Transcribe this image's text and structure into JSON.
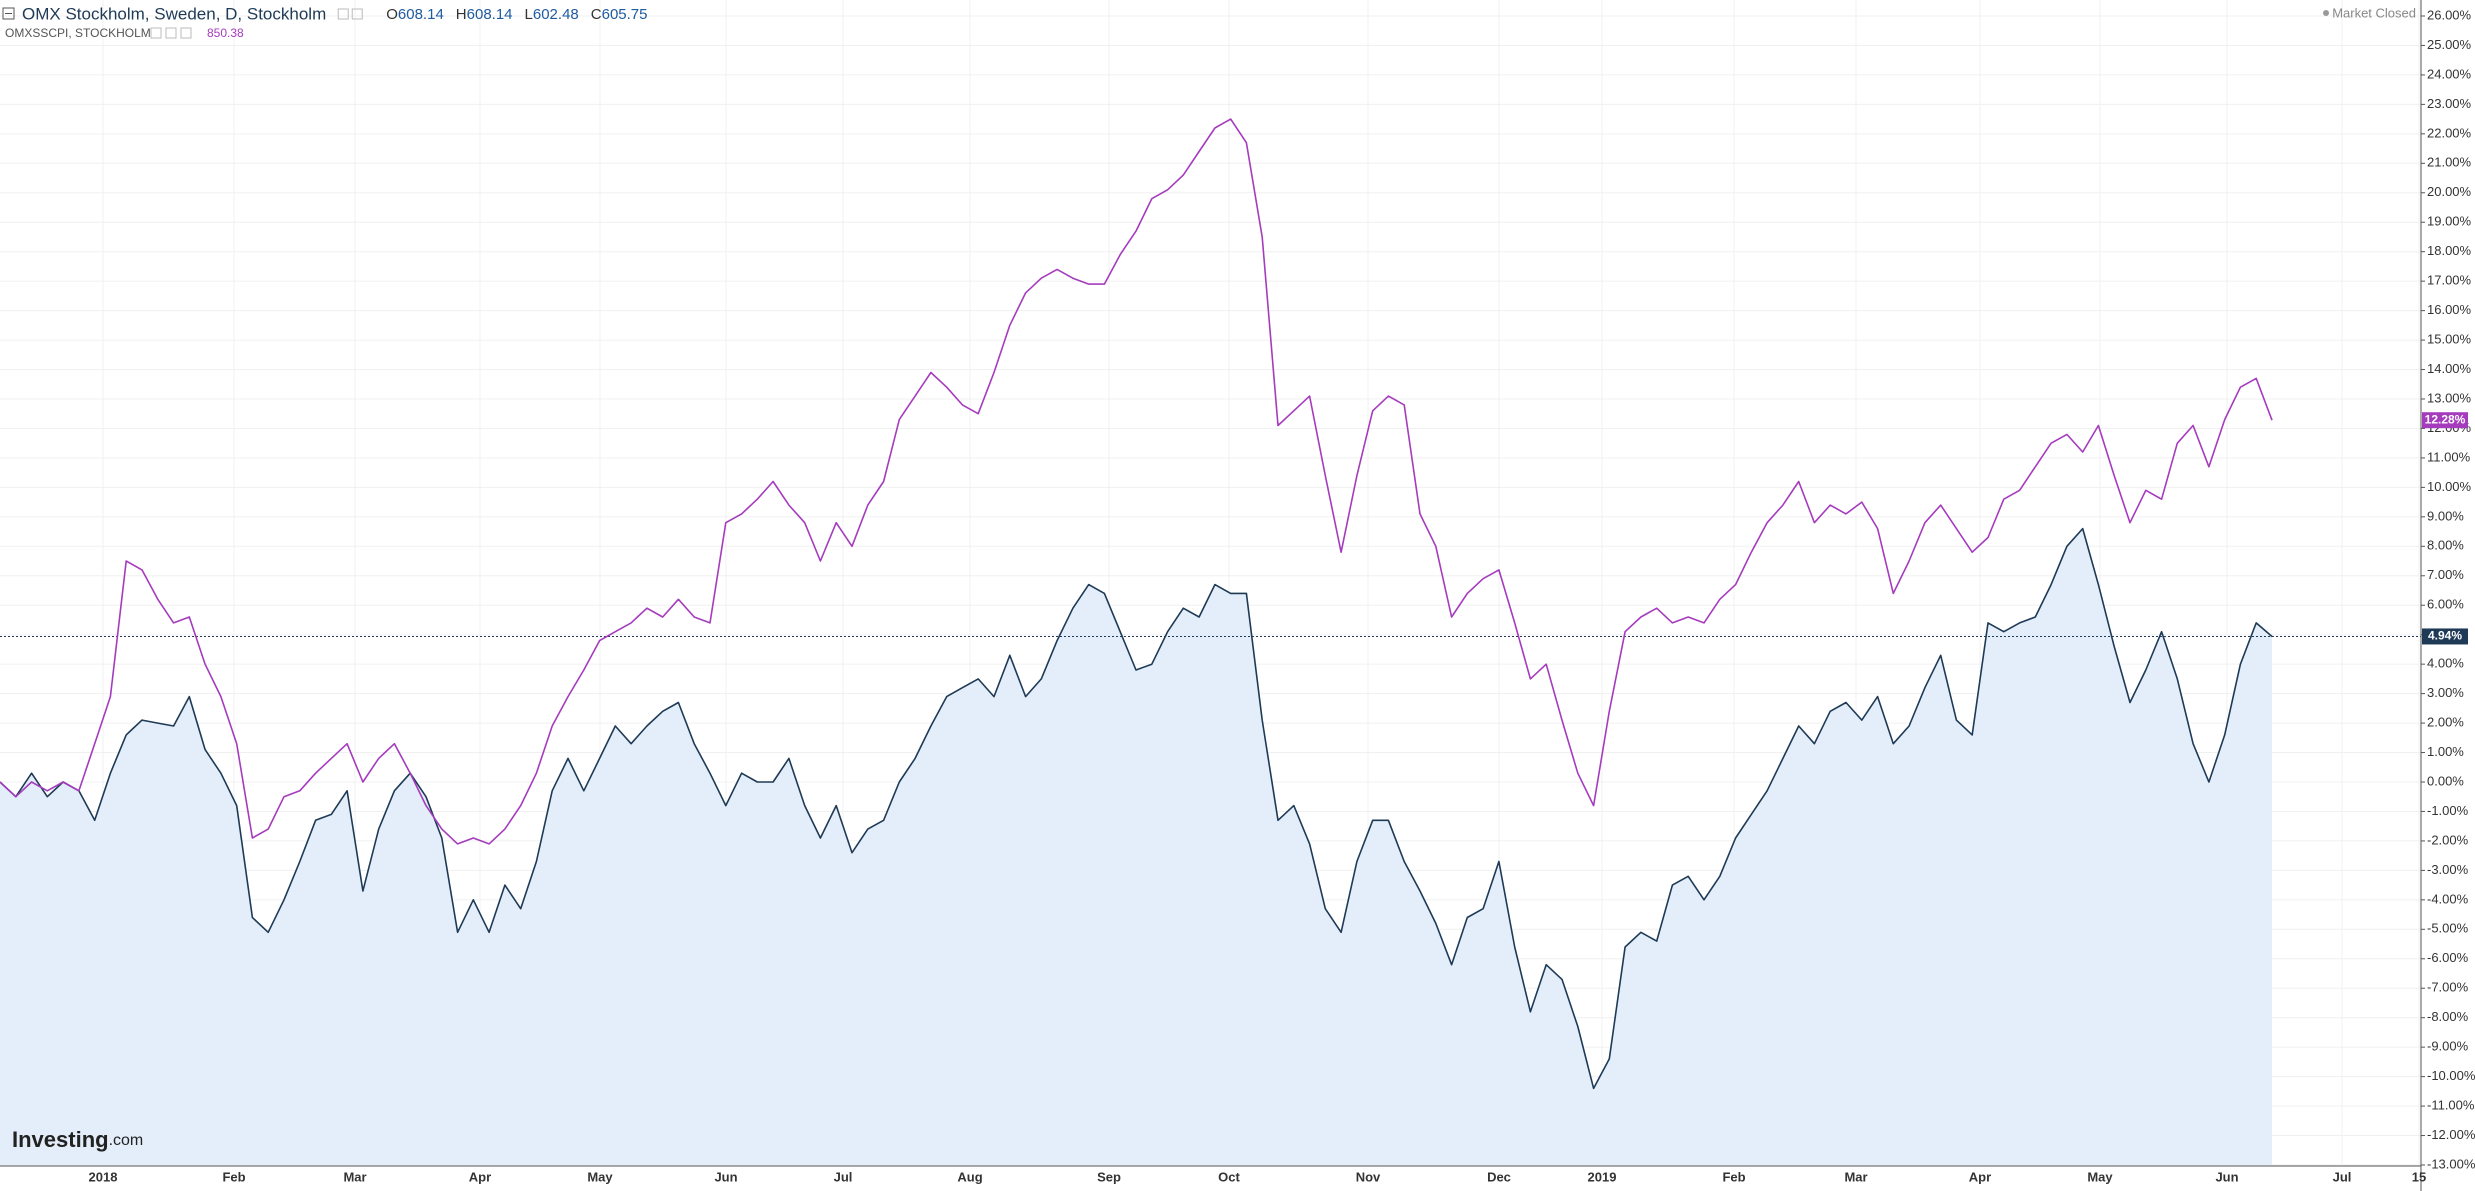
{
  "header": {
    "ohlc": [
      {
        "label": "O",
        "value": "608.14"
      },
      {
        "label": "H",
        "value": "608.14"
      },
      {
        "label": "L",
        "value": "602.48"
      },
      {
        "label": "C",
        "value": "605.75"
      }
    ],
    "compare_value": "850.38",
    "status": "Market Closed",
    "logo": "Investing",
    "logo_suffix": ".com"
  },
  "chart_data": {
    "type": "line",
    "x_labels": [
      "2018",
      "Feb",
      "Mar",
      "Apr",
      "May",
      "Jun",
      "Jul",
      "Aug",
      "Sep",
      "Oct",
      "Nov",
      "Dec",
      "2019",
      "Feb",
      "Mar",
      "Apr",
      "May",
      "Jun",
      "Jul",
      "15"
    ],
    "ylim": [
      -13,
      26
    ],
    "yticks": [
      {
        "value": 26,
        "label": "26.00%"
      },
      {
        "value": 25,
        "label": "25.00%"
      },
      {
        "value": 24,
        "label": "24.00%"
      },
      {
        "value": 23,
        "label": "23.00%"
      },
      {
        "value": 22,
        "label": "22.00%"
      },
      {
        "value": 21,
        "label": "21.00%"
      },
      {
        "value": 20,
        "label": "20.00%"
      },
      {
        "value": 19,
        "label": "19.00%"
      },
      {
        "value": 18,
        "label": "18.00%"
      },
      {
        "value": 17,
        "label": "17.00%"
      },
      {
        "value": 16,
        "label": "16.00%"
      },
      {
        "value": 15,
        "label": "15.00%"
      },
      {
        "value": 14,
        "label": "14.00%"
      },
      {
        "value": 13,
        "label": "13.00%"
      },
      {
        "value": 12,
        "label": "12.00%"
      },
      {
        "value": 11,
        "label": "11.00%"
      },
      {
        "value": 10,
        "label": "10.00%"
      },
      {
        "value": 9,
        "label": "9.00%"
      },
      {
        "value": 8,
        "label": "8.00%"
      },
      {
        "value": 7,
        "label": "7.00%"
      },
      {
        "value": 6,
        "label": "6.00%"
      },
      {
        "value": 5,
        "label": "5.00%"
      },
      {
        "value": 4,
        "label": "4.00%"
      },
      {
        "value": 3,
        "label": "3.00%"
      },
      {
        "value": 2,
        "label": "2.00%"
      },
      {
        "value": 1,
        "label": "1.00%"
      },
      {
        "value": 0,
        "label": "0.00%"
      },
      {
        "value": -1,
        "label": "-1.00%"
      },
      {
        "value": -2,
        "label": "-2.00%"
      },
      {
        "value": -3,
        "label": "-3.00%"
      },
      {
        "value": -4,
        "label": "-4.00%"
      },
      {
        "value": -5,
        "label": "-5.00%"
      },
      {
        "value": -6,
        "label": "-6.00%"
      },
      {
        "value": -7,
        "label": "-7.00%"
      },
      {
        "value": -8,
        "label": "-8.00%"
      },
      {
        "value": -9,
        "label": "-9.00%"
      },
      {
        "value": -10,
        "label": "-10.00%"
      },
      {
        "value": -11,
        "label": "-11.00%"
      },
      {
        "value": -12,
        "label": "-12.00%"
      },
      {
        "value": -13,
        "label": "-13.00%"
      }
    ],
    "grid": true,
    "series": [
      {
        "name": "OMX Stockholm, Sweden, D, Stockholm",
        "color": "#1e3a56",
        "fill": "#e4eefa",
        "last_value_label": "4.94%",
        "values": [
          0,
          -0.5,
          0.3,
          -0.5,
          0,
          -0.3,
          -1.3,
          0.3,
          1.6,
          2.1,
          2.0,
          1.9,
          2.9,
          1.1,
          0.3,
          -0.8,
          -4.6,
          -5.1,
          -4.0,
          -2.7,
          -1.3,
          -1.1,
          -0.3,
          -3.7,
          -1.6,
          -0.3,
          0.3,
          -0.5,
          -1.9,
          -5.1,
          -4.0,
          -5.1,
          -3.5,
          -4.3,
          -2.7,
          -0.3,
          0.8,
          -0.3,
          0.8,
          1.9,
          1.3,
          1.9,
          2.4,
          2.7,
          1.3,
          0.3,
          -0.8,
          0.3,
          0,
          0,
          0.8,
          -0.8,
          -1.9,
          -0.8,
          -2.4,
          -1.6,
          -1.3,
          0,
          0.8,
          1.9,
          2.9,
          3.2,
          3.5,
          2.9,
          4.3,
          2.9,
          3.5,
          4.8,
          5.9,
          6.7,
          6.4,
          5.1,
          3.8,
          4.0,
          5.1,
          5.9,
          5.6,
          6.7,
          6.4,
          6.4,
          2.1,
          -1.3,
          -0.8,
          -2.1,
          -4.3,
          -5.1,
          -2.7,
          -1.3,
          -1.3,
          -2.7,
          -3.7,
          -4.8,
          -6.2,
          -4.6,
          -4.3,
          -2.7,
          -5.6,
          -7.8,
          -6.2,
          -6.7,
          -8.3,
          -10.4,
          -9.4,
          -5.6,
          -5.1,
          -5.4,
          -3.5,
          -3.2,
          -4.0,
          -3.2,
          -1.9,
          -1.1,
          -0.3,
          0.8,
          1.9,
          1.3,
          2.4,
          2.7,
          2.1,
          2.9,
          1.3,
          1.9,
          3.2,
          4.3,
          2.1,
          1.6,
          5.4,
          5.1,
          5.4,
          5.6,
          6.7,
          8.0,
          8.6,
          6.7,
          4.6,
          2.7,
          3.8,
          5.1,
          3.5,
          1.3,
          0,
          1.6,
          4.0,
          5.4,
          4.94
        ]
      },
      {
        "name": "OMXSSCPI, STOCKHOLM",
        "color": "#a53bbd",
        "last_value_label": "12.28%",
        "values": [
          0,
          -0.5,
          0,
          -0.3,
          0,
          -0.3,
          1.3,
          2.9,
          7.5,
          7.2,
          6.2,
          5.4,
          5.6,
          4.0,
          2.9,
          1.3,
          -1.9,
          -1.6,
          -0.5,
          -0.3,
          0.3,
          0.8,
          1.3,
          0,
          0.8,
          1.3,
          0.3,
          -0.8,
          -1.6,
          -2.1,
          -1.9,
          -2.1,
          -1.6,
          -0.8,
          0.3,
          1.9,
          2.9,
          3.8,
          4.8,
          5.1,
          5.4,
          5.9,
          5.6,
          6.2,
          5.6,
          5.4,
          8.8,
          9.1,
          9.6,
          10.2,
          9.4,
          8.8,
          7.5,
          8.8,
          8.0,
          9.4,
          10.2,
          12.3,
          13.1,
          13.9,
          13.4,
          12.8,
          12.5,
          13.9,
          15.5,
          16.6,
          17.1,
          17.4,
          17.1,
          16.9,
          16.9,
          17.9,
          18.7,
          19.8,
          20.1,
          20.6,
          21.4,
          22.2,
          22.5,
          21.7,
          18.5,
          12.1,
          12.6,
          13.1,
          10.4,
          7.8,
          10.4,
          12.6,
          13.1,
          12.8,
          9.1,
          8.0,
          5.6,
          6.4,
          6.9,
          7.2,
          5.4,
          3.5,
          4.0,
          2.1,
          0.3,
          -0.8,
          2.4,
          5.1,
          5.6,
          5.9,
          5.4,
          5.6,
          5.4,
          6.2,
          6.7,
          7.8,
          8.8,
          9.4,
          10.2,
          8.8,
          9.4,
          9.1,
          9.5,
          8.6,
          6.4,
          7.5,
          8.8,
          9.4,
          8.6,
          7.8,
          8.3,
          9.6,
          9.9,
          10.7,
          11.5,
          11.8,
          11.2,
          12.1,
          10.4,
          8.8,
          9.9,
          9.6,
          11.5,
          12.1,
          10.7,
          12.3,
          13.4,
          13.7,
          12.28
        ]
      }
    ]
  }
}
